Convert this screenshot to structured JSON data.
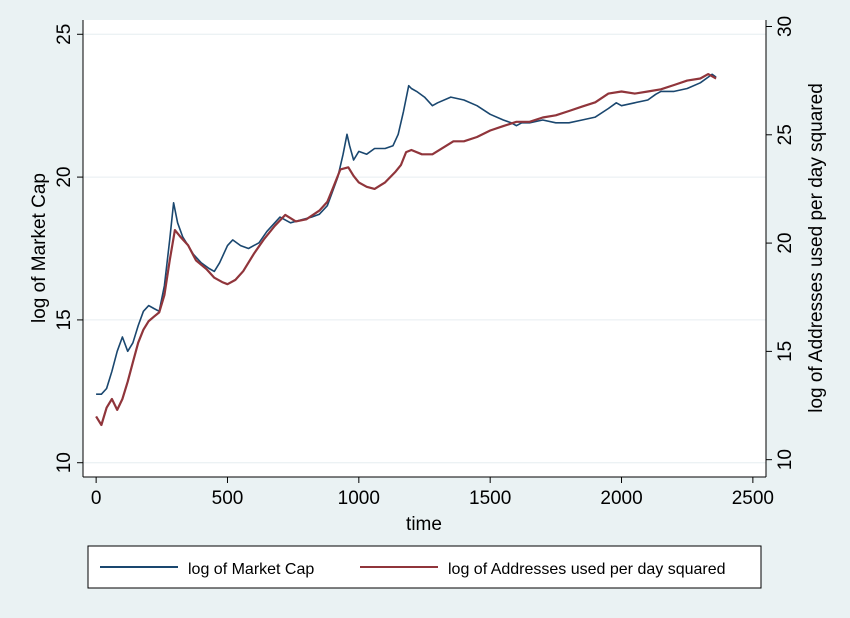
{
  "chart_data": {
    "type": "line",
    "title": "",
    "xlabel": "time",
    "ylabel_left": "log of Market Cap",
    "ylabel_right": "log of Addresses used per day squared",
    "xlim": [
      -50,
      2550
    ],
    "ylim_left": [
      9.5,
      25.5
    ],
    "ylim_right": [
      9.2,
      30.3
    ],
    "x_ticks": [
      0,
      500,
      1000,
      1500,
      2000,
      2500
    ],
    "y_left_ticks": [
      10,
      15,
      20,
      25
    ],
    "y_right_ticks": [
      10,
      15,
      20,
      25,
      30
    ],
    "grid": true,
    "legend_position": "bottom",
    "series": [
      {
        "name": "log of Market Cap",
        "axis": "left",
        "color": "#1a476f",
        "x": [
          0,
          20,
          40,
          60,
          80,
          100,
          120,
          140,
          160,
          180,
          200,
          220,
          240,
          260,
          280,
          295,
          310,
          330,
          350,
          370,
          400,
          430,
          450,
          470,
          500,
          520,
          550,
          580,
          600,
          620,
          650,
          700,
          740,
          780,
          820,
          850,
          880,
          900,
          920,
          940,
          955,
          965,
          980,
          1000,
          1030,
          1060,
          1100,
          1130,
          1150,
          1170,
          1190,
          1200,
          1220,
          1250,
          1280,
          1300,
          1350,
          1400,
          1450,
          1500,
          1550,
          1580,
          1600,
          1620,
          1650,
          1700,
          1750,
          1800,
          1850,
          1900,
          1950,
          1980,
          2000,
          2050,
          2100,
          2130,
          2150,
          2200,
          2250,
          2300,
          2330,
          2345,
          2360
        ],
        "y": [
          12.4,
          12.4,
          12.6,
          13.2,
          13.9,
          14.4,
          13.9,
          14.2,
          14.8,
          15.3,
          15.5,
          15.4,
          15.3,
          16.2,
          17.8,
          19.1,
          18.4,
          17.9,
          17.6,
          17.3,
          17.0,
          16.8,
          16.7,
          17.0,
          17.6,
          17.8,
          17.6,
          17.5,
          17.6,
          17.7,
          18.1,
          18.6,
          18.4,
          18.5,
          18.6,
          18.7,
          19.0,
          19.5,
          20.0,
          20.8,
          21.5,
          21.1,
          20.6,
          20.9,
          20.8,
          21.0,
          21.0,
          21.1,
          21.5,
          22.3,
          23.2,
          23.1,
          23.0,
          22.8,
          22.5,
          22.6,
          22.8,
          22.7,
          22.5,
          22.2,
          22.0,
          21.9,
          21.8,
          21.9,
          21.9,
          22.0,
          21.9,
          21.9,
          22.0,
          22.1,
          22.4,
          22.6,
          22.5,
          22.6,
          22.7,
          22.9,
          23.0,
          23.0,
          23.1,
          23.3,
          23.5,
          23.6,
          23.5
        ]
      },
      {
        "name": "log of Addresses used per day squared",
        "axis": "right",
        "color": "#90353b",
        "x": [
          0,
          20,
          40,
          60,
          80,
          100,
          120,
          140,
          160,
          180,
          200,
          220,
          240,
          260,
          280,
          300,
          320,
          350,
          380,
          420,
          450,
          480,
          500,
          530,
          560,
          600,
          640,
          680,
          720,
          760,
          800,
          850,
          880,
          900,
          930,
          960,
          980,
          1000,
          1030,
          1060,
          1100,
          1140,
          1160,
          1180,
          1200,
          1240,
          1280,
          1320,
          1360,
          1400,
          1450,
          1500,
          1550,
          1600,
          1650,
          1700,
          1750,
          1800,
          1850,
          1900,
          1950,
          2000,
          2050,
          2100,
          2150,
          2200,
          2250,
          2300,
          2330,
          2360
        ],
        "y": [
          12.0,
          11.6,
          12.4,
          12.8,
          12.3,
          12.8,
          13.6,
          14.5,
          15.4,
          16.0,
          16.4,
          16.6,
          16.8,
          17.6,
          19.2,
          20.6,
          20.3,
          19.9,
          19.2,
          18.8,
          18.4,
          18.2,
          18.1,
          18.3,
          18.7,
          19.5,
          20.2,
          20.8,
          21.3,
          21.0,
          21.1,
          21.5,
          21.9,
          22.5,
          23.4,
          23.5,
          23.1,
          22.8,
          22.6,
          22.5,
          22.8,
          23.3,
          23.6,
          24.2,
          24.3,
          24.1,
          24.1,
          24.4,
          24.7,
          24.7,
          24.9,
          25.2,
          25.4,
          25.6,
          25.6,
          25.8,
          25.9,
          26.1,
          26.3,
          26.5,
          26.9,
          27.0,
          26.9,
          27.0,
          27.1,
          27.3,
          27.5,
          27.6,
          27.8,
          27.6
        ]
      }
    ]
  }
}
